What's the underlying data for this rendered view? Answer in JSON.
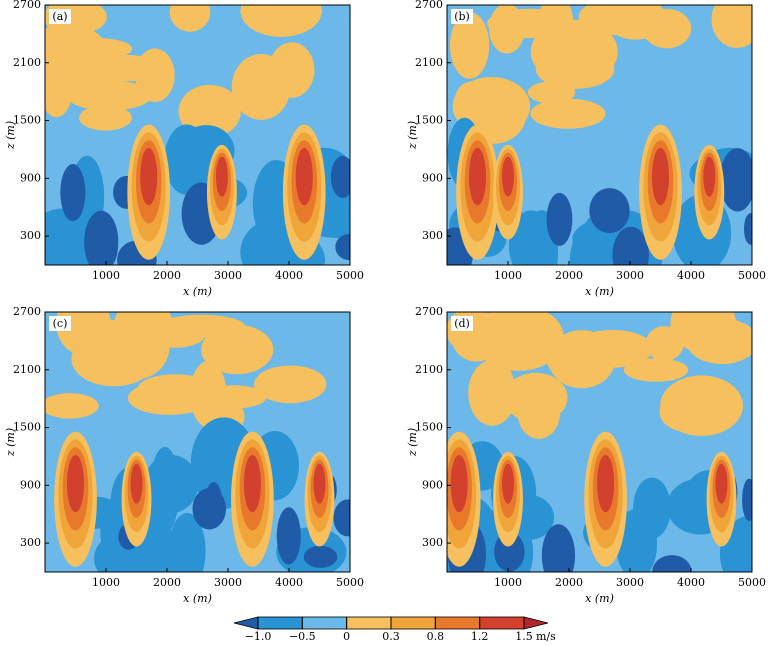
{
  "chart_data": [
    {
      "type": "contour",
      "label": "(a)",
      "xlabel": "x (m)",
      "ylabel": "z (m)",
      "xlim": [
        0,
        5000
      ],
      "ylim": [
        0,
        2700
      ],
      "xticks": [
        1000,
        2000,
        3000,
        4000,
        5000
      ],
      "yticks": [
        300,
        900,
        1500,
        2100,
        2700
      ]
    },
    {
      "type": "contour",
      "label": "(b)",
      "xlabel": "x (m)",
      "ylabel": "z (m)",
      "xlim": [
        0,
        5000
      ],
      "ylim": [
        0,
        2700
      ],
      "xticks": [
        1000,
        2000,
        3000,
        4000,
        5000
      ],
      "yticks": [
        300,
        900,
        1500,
        2100,
        2700
      ]
    },
    {
      "type": "contour",
      "label": "(c)",
      "xlabel": "x (m)",
      "ylabel": "z (m)",
      "xlim": [
        0,
        5000
      ],
      "ylim": [
        0,
        2700
      ],
      "xticks": [
        1000,
        2000,
        3000,
        4000,
        5000
      ],
      "yticks": [
        300,
        900,
        1500,
        2100,
        2700
      ]
    },
    {
      "type": "contour",
      "label": "(d)",
      "xlabel": "x (m)",
      "ylabel": "z (m)",
      "xlim": [
        0,
        5000
      ],
      "ylim": [
        0,
        2700
      ],
      "xticks": [
        1000,
        2000,
        3000,
        4000,
        5000
      ],
      "yticks": [
        300,
        900,
        1500,
        2100,
        2700
      ]
    }
  ],
  "colorbar": {
    "levels": [
      {
        "value": -1.0,
        "label": "−1.0"
      },
      {
        "value": -0.5,
        "label": "−0.5"
      },
      0,
      0.3,
      0.8,
      1.2,
      1.5
    ],
    "unit": "m/s",
    "colors": [
      "#1f5ba7",
      "#2a93d3",
      "#6cb8e8",
      "#f6c05e",
      "#f0a53a",
      "#e8782c",
      "#d2402e",
      "#b2282a"
    ]
  }
}
